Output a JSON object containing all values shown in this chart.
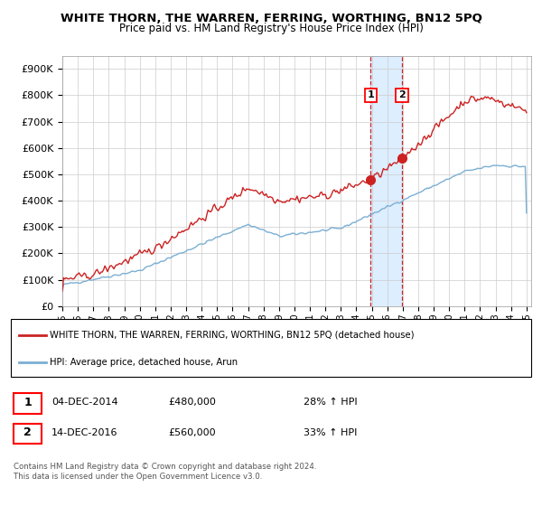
{
  "title": "WHITE THORN, THE WARREN, FERRING, WORTHING, BN12 5PQ",
  "subtitle": "Price paid vs. HM Land Registry's House Price Index (HPI)",
  "ylim": [
    0,
    950000
  ],
  "yticks": [
    0,
    100000,
    200000,
    300000,
    400000,
    500000,
    600000,
    700000,
    800000,
    900000
  ],
  "ytick_labels": [
    "£0",
    "£100K",
    "£200K",
    "£300K",
    "£400K",
    "£500K",
    "£600K",
    "£700K",
    "£800K",
    "£900K"
  ],
  "x_start_year": 1995,
  "x_end_year": 2025,
  "xtick_years": [
    1995,
    1996,
    1997,
    1998,
    1999,
    2000,
    2001,
    2002,
    2003,
    2004,
    2005,
    2006,
    2007,
    2008,
    2009,
    2010,
    2011,
    2012,
    2013,
    2014,
    2015,
    2016,
    2017,
    2018,
    2019,
    2020,
    2021,
    2022,
    2023,
    2024,
    2025
  ],
  "hpi_color": "#7bafd4",
  "price_color": "#cc2222",
  "sale1_year": 2014.92,
  "sale1_price": 480000,
  "sale1_label": "1",
  "sale2_year": 2016.95,
  "sale2_price": 560000,
  "sale2_label": "2",
  "shade_color": "#ddeeff",
  "legend_line1": "WHITE THORN, THE WARREN, FERRING, WORTHING, BN12 5PQ (detached house)",
  "legend_line2": "HPI: Average price, detached house, Arun",
  "note1_label": "1",
  "note1_date": "04-DEC-2014",
  "note1_price": "£480,000",
  "note1_hpi": "28% ↑ HPI",
  "note2_label": "2",
  "note2_date": "14-DEC-2016",
  "note2_price": "£560,000",
  "note2_hpi": "33% ↑ HPI",
  "footer": "Contains HM Land Registry data © Crown copyright and database right 2024.\nThis data is licensed under the Open Government Licence v3.0.",
  "background_color": "#ffffff",
  "grid_color": "#cccccc"
}
